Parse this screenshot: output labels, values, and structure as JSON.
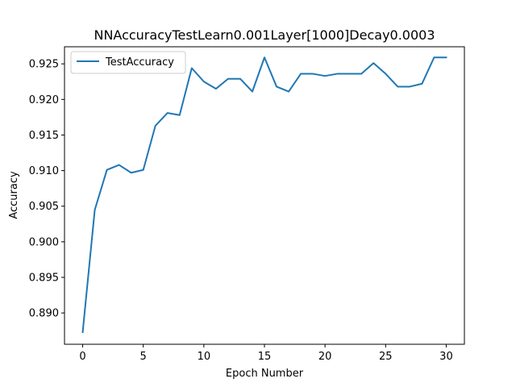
{
  "chart_data": {
    "type": "line",
    "title": "NNAccuracyTestLearn0.001Layer[1000]Decay0.0003",
    "xlabel": "Epoch Number",
    "ylabel": "Accuracy",
    "xlim": [
      -1.5,
      31.5
    ],
    "ylim": [
      0.8856,
      0.9274
    ],
    "xticks": [
      0,
      5,
      10,
      15,
      20,
      25,
      30
    ],
    "xtick_labels": [
      "0",
      "5",
      "10",
      "15",
      "20",
      "25",
      "30"
    ],
    "yticks": [
      0.89,
      0.895,
      0.9,
      0.905,
      0.91,
      0.915,
      0.92,
      0.925
    ],
    "ytick_labels": [
      "0.890",
      "0.895",
      "0.900",
      "0.905",
      "0.910",
      "0.915",
      "0.920",
      "0.925"
    ],
    "grid": false,
    "legend_position": "upper-left",
    "series": [
      {
        "name": "TestAccuracy",
        "color": "#1f77b4",
        "x": [
          0,
          1,
          2,
          3,
          4,
          5,
          6,
          7,
          8,
          9,
          10,
          11,
          12,
          13,
          14,
          15,
          16,
          17,
          18,
          19,
          20,
          21,
          22,
          23,
          24,
          25,
          26,
          27,
          28,
          29,
          30
        ],
        "y": [
          0.8873,
          0.9045,
          0.9101,
          0.9108,
          0.9097,
          0.9101,
          0.9163,
          0.9181,
          0.9178,
          0.9244,
          0.9225,
          0.9215,
          0.9229,
          0.9229,
          0.9211,
          0.9259,
          0.9218,
          0.9211,
          0.9236,
          0.9236,
          0.9233,
          0.9236,
          0.9236,
          0.9236,
          0.9251,
          0.9236,
          0.9218,
          0.9218,
          0.9222,
          0.9259,
          0.9259
        ]
      }
    ]
  }
}
